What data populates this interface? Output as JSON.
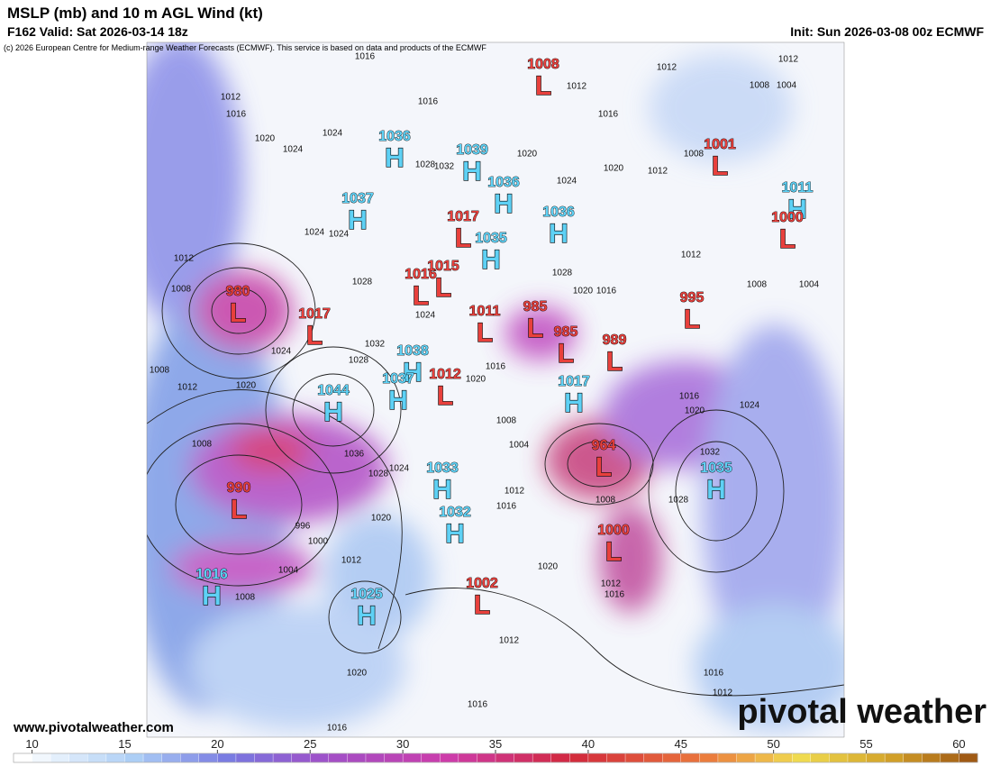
{
  "header": {
    "title": "MSLP (mb) and 10 m AGL Wind (kt)",
    "valid": "F162 Valid: Sat 2026-03-14 18z",
    "init": "Init: Sun 2026-03-08 00z ECMWF",
    "credit": "(c) 2026 European Centre for Medium-range Weather Forecasts (ECMWF). This service is based on data and products of the ECMWF"
  },
  "centers": [
    {
      "kind": "H",
      "value": "1036"
    },
    {
      "kind": "H",
      "value": "1039"
    },
    {
      "kind": "H",
      "value": "1036"
    },
    {
      "kind": "H",
      "value": "1037"
    },
    {
      "kind": "H",
      "value": "1036"
    },
    {
      "kind": "H",
      "value": "1035"
    },
    {
      "kind": "L",
      "value": "1017"
    },
    {
      "kind": "L",
      "value": "1016"
    },
    {
      "kind": "L",
      "value": "1015"
    },
    {
      "kind": "L",
      "value": "980"
    },
    {
      "kind": "L",
      "value": "1017"
    },
    {
      "kind": "L",
      "value": "1011"
    },
    {
      "kind": "L",
      "value": "985"
    },
    {
      "kind": "L",
      "value": "985"
    },
    {
      "kind": "L",
      "value": "989"
    },
    {
      "kind": "L",
      "value": "995"
    },
    {
      "kind": "L",
      "value": "1008"
    },
    {
      "kind": "L",
      "value": "1001"
    },
    {
      "kind": "H",
      "value": "1011"
    },
    {
      "kind": "L",
      "value": "1000"
    },
    {
      "kind": "H",
      "value": "1038"
    },
    {
      "kind": "H",
      "value": "1044"
    },
    {
      "kind": "H",
      "value": "1037"
    },
    {
      "kind": "L",
      "value": "1012"
    },
    {
      "kind": "H",
      "value": "1017"
    },
    {
      "kind": "L",
      "value": "964"
    },
    {
      "kind": "H",
      "value": "1035"
    },
    {
      "kind": "H",
      "value": "1033"
    },
    {
      "kind": "L",
      "value": "990"
    },
    {
      "kind": "H",
      "value": "1032"
    },
    {
      "kind": "L",
      "value": "1000"
    },
    {
      "kind": "H",
      "value": "1016"
    },
    {
      "kind": "H",
      "value": "1025"
    },
    {
      "kind": "L",
      "value": "1002"
    }
  ],
  "isobar_labels": [
    "1016",
    "1012",
    "1012",
    "1008",
    "1004",
    "1012",
    "1016",
    "1016",
    "1012",
    "1016",
    "1020",
    "1024",
    "1024",
    "1020",
    "1024",
    "1020",
    "1012",
    "1008",
    "1028",
    "1032",
    "1024",
    "1012",
    "1008",
    "1028",
    "1020",
    "1016",
    "1012",
    "1008",
    "1004",
    "1024",
    "1028",
    "1024",
    "1032",
    "1028",
    "1024",
    "1012",
    "1020",
    "1008",
    "1016",
    "1020",
    "1008",
    "1036",
    "1028",
    "1024",
    "1016",
    "1020",
    "1024",
    "1032",
    "1028",
    "996",
    "1000",
    "1012",
    "1004",
    "1008",
    "1020",
    "1020",
    "1012",
    "1020",
    "1016",
    "1012",
    "1016",
    "1016",
    "1016",
    "1012",
    "1004",
    "1008",
    "1012",
    "1016",
    "1008"
  ],
  "footer": {
    "website": "www.pivotalweather.com",
    "brand": "pivotal weather"
  },
  "colorbar": {
    "lim": [
      9,
      61
    ],
    "ticks": [
      10,
      15,
      20,
      25,
      30,
      35,
      40,
      45,
      50,
      55,
      60
    ]
  }
}
